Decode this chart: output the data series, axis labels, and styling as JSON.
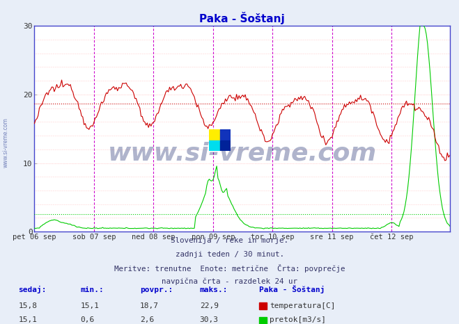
{
  "title": "Paka - Šoštanj",
  "title_color": "#0000cc",
  "bg_color": "#e8eef8",
  "plot_bg_color": "#ffffff",
  "grid_h_color": "#ffaaaa",
  "grid_v_color": "#cc00cc",
  "border_color": "#4444cc",
  "x_tick_labels": [
    "pet 06 sep",
    "sob 07 sep",
    "ned 08 sep",
    "pon 09 sep",
    "tor 10 sep",
    "sre 11 sep",
    "čet 12 sep"
  ],
  "y_ticks": [
    0,
    10,
    20,
    30
  ],
  "ylim": [
    0,
    30
  ],
  "n_points": 336,
  "temp_avg": 18.7,
  "flow_avg": 2.6,
  "temp_color": "#cc0000",
  "flow_color": "#00cc00",
  "vline_color": "#cc00cc",
  "footer_lines": [
    "Slovenija / reke in morje.",
    "zadnji teden / 30 minut.",
    "Meritve: trenutne  Enote: metrične  Črta: povprečje",
    "navpična črta - razdelek 24 ur"
  ],
  "table_headers": [
    "sedaj:",
    "min.:",
    "povpr.:",
    "maks.:"
  ],
  "table_row1": [
    "15,8",
    "15,1",
    "18,7",
    "22,9"
  ],
  "table_row2": [
    "15,1",
    "0,6",
    "2,6",
    "30,3"
  ],
  "station_name": "Paka - Šoštanj",
  "legend_temp": "temperatura[C]",
  "legend_flow": "pretok[m3/s]"
}
